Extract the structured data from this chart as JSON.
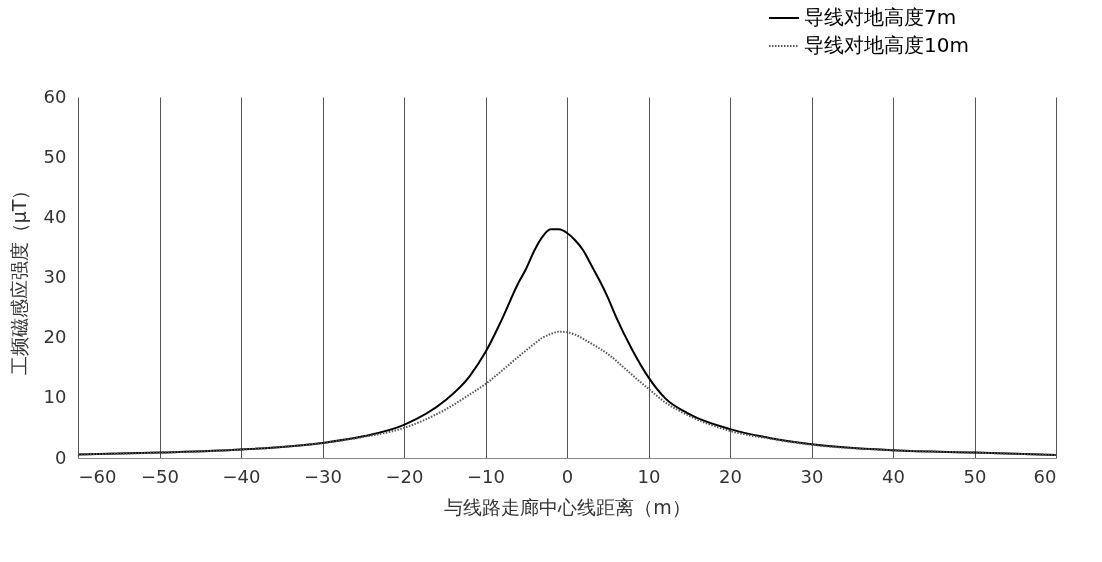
{
  "chart_data": {
    "type": "line",
    "xlabel": "与线路走廊中心线距离（m）",
    "ylabel": "工频磁感应强度（μT）",
    "xlim": [
      -60,
      60
    ],
    "xticks": [
      -60,
      -50,
      -40,
      -30,
      -20,
      -10,
      0,
      10,
      20,
      30,
      40,
      50,
      60
    ],
    "ylim": [
      0,
      60
    ],
    "yticks": [
      0,
      10,
      20,
      30,
      40,
      50,
      60
    ],
    "grid": "x",
    "legend": "top right",
    "x": [
      -60,
      -50,
      -40,
      -30,
      -25,
      -20,
      -15,
      -12,
      -10,
      -8,
      -6,
      -5,
      -4,
      -3,
      -2,
      -1,
      0,
      1,
      2,
      3,
      4,
      5,
      6,
      8,
      10,
      12,
      15,
      20,
      25,
      30,
      40,
      50,
      60
    ],
    "series": [
      {
        "name": "导线对地高度7m",
        "color": "#000000",
        "line_style": "solid",
        "values": [
          0.6,
          0.9,
          1.4,
          2.5,
          3.6,
          5.5,
          9.5,
          13.5,
          17.6,
          23,
          29,
          31.5,
          34.5,
          36.8,
          38,
          38,
          37.4,
          36.2,
          34.5,
          32,
          29.5,
          26.7,
          23.5,
          18,
          13.4,
          10,
          7.3,
          4.8,
          3.3,
          2.3,
          1.3,
          0.9,
          0.5
        ]
      },
      {
        "name": "导线对地高度10m",
        "color": "#555555",
        "line_style": "dotted",
        "values": [
          0.6,
          0.9,
          1.4,
          2.5,
          3.5,
          5,
          8,
          10.5,
          12.3,
          14.5,
          16.8,
          17.9,
          19,
          20,
          20.6,
          21,
          20.9,
          20.5,
          19.8,
          19,
          18.2,
          17.3,
          16.2,
          13.8,
          11.5,
          9.3,
          7,
          4.5,
          3.2,
          2.2,
          1.3,
          0.9,
          0.5
        ]
      }
    ]
  }
}
